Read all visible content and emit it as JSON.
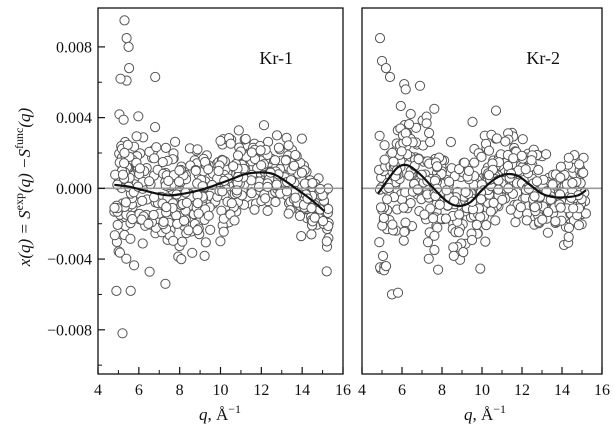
{
  "chart_data": [
    {
      "type": "scatter",
      "panel_label": "Kr-1",
      "xlabel_main": "q",
      "xlabel_unit": "Å",
      "xlabel_unit_exp": "−1",
      "ylabel_parts": {
        "lhs": "x(q) = S",
        "exp_sup": "exp",
        "mid": "(q) −S",
        "func_sup": "func",
        "rhs": "(q)"
      },
      "xlim": [
        4,
        16
      ],
      "ylim": [
        -0.0105,
        0.0102
      ],
      "x_ticks": [
        "4",
        "6",
        "8",
        "10",
        "12",
        "14",
        "16"
      ],
      "x_tick_values": [
        4,
        6,
        8,
        10,
        12,
        14,
        16
      ],
      "y_ticks": [
        "0.008",
        "0.004",
        "0.000",
        "−0.004",
        "−0.008"
      ],
      "y_tick_values": [
        0.008,
        0.004,
        0.0,
        -0.004,
        -0.008
      ],
      "zero_line": 0.0,
      "fit_curve": {
        "x": [
          4.8,
          5.5,
          6.2,
          6.9,
          7.5,
          8.2,
          9.0,
          9.8,
          10.5,
          11.2,
          12.0,
          12.6,
          13.2,
          13.8,
          14.4,
          15.1
        ],
        "y": [
          0.0002,
          0.0001,
          -0.0001,
          -0.0003,
          -0.0004,
          -0.0003,
          -0.0001,
          0.0002,
          0.0005,
          0.0008,
          0.0009,
          0.0008,
          0.0004,
          -0.0001,
          -0.0006,
          -0.0013
        ]
      },
      "scatter_generation": {
        "x_start": 4.8,
        "x_end": 15.3,
        "count": 560,
        "spread_left": 0.0034,
        "spread_right": 0.0016,
        "seed": 11
      },
      "outliers": {
        "x": [
          5.3,
          5.4,
          5.5,
          5.2,
          4.9,
          5.1,
          5.6,
          6.8,
          7.3,
          15.2
        ],
        "y": [
          0.0095,
          0.0085,
          0.008,
          -0.0082,
          -0.0058,
          0.0062,
          -0.0058,
          0.0063,
          -0.0054,
          -0.0047
        ]
      }
    },
    {
      "type": "scatter",
      "panel_label": "Kr-2",
      "xlabel_main": "q",
      "xlabel_unit": "Å",
      "xlabel_unit_exp": "−1",
      "xlim": [
        4,
        16
      ],
      "ylim": [
        -0.0105,
        0.0102
      ],
      "x_ticks": [
        "4",
        "6",
        "8",
        "10",
        "12",
        "14",
        "16"
      ],
      "x_tick_values": [
        4,
        6,
        8,
        10,
        12,
        14,
        16
      ],
      "zero_line": 0.0,
      "fit_curve": {
        "x": [
          4.8,
          5.3,
          5.8,
          6.3,
          6.9,
          7.5,
          8.2,
          8.8,
          9.4,
          10.0,
          10.6,
          11.2,
          11.8,
          12.4,
          13.0,
          13.6,
          14.2,
          14.8,
          15.2
        ],
        "y": [
          -0.0003,
          0.0005,
          0.0012,
          0.0013,
          0.0008,
          0.0001,
          -0.0007,
          -0.001,
          -0.0008,
          -0.0001,
          0.0005,
          0.0008,
          0.0007,
          0.0002,
          -0.0003,
          -0.0005,
          -0.0005,
          -0.0004,
          -0.0001
        ]
      },
      "scatter_generation": {
        "x_start": 4.8,
        "x_end": 15.3,
        "count": 560,
        "spread_left": 0.0036,
        "spread_right": 0.0015,
        "seed": 29
      },
      "outliers": {
        "x": [
          4.9,
          5.0,
          5.2,
          5.4,
          5.5,
          5.8,
          5.2,
          6.9,
          10.7
        ],
        "y": [
          0.0085,
          0.0072,
          0.0068,
          0.0063,
          -0.006,
          -0.0059,
          -0.0044,
          0.0058,
          0.0044
        ]
      }
    }
  ],
  "colors": {
    "axis": "#111111",
    "marker_edge": "#555555",
    "zero_line": "#999999",
    "fit_line": "#111111"
  }
}
